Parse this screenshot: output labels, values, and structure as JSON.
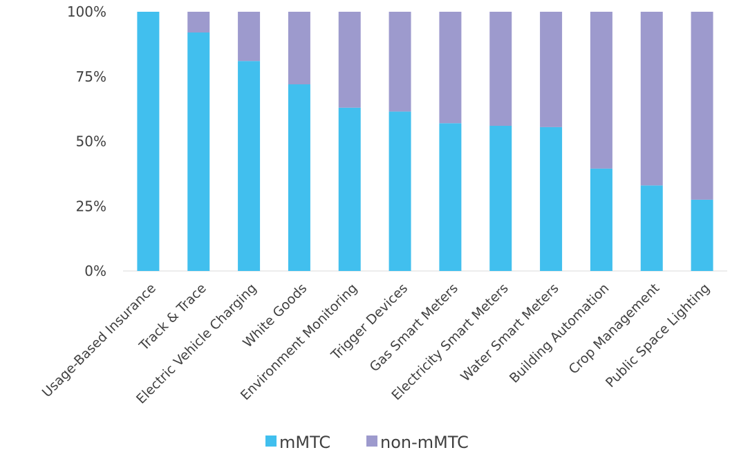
{
  "chart_data": {
    "type": "bar",
    "stacked": true,
    "percent": true,
    "categories": [
      "Usage-Based Insurance",
      "Track & Trace",
      "Electric Vehicle Charging",
      "White Goods",
      "Environment Monitoring",
      "Trigger Devices",
      "Gas Smart Meters",
      "Electricity Smart Meters",
      "Water Smart Meters",
      "Building Automation",
      "Crop Management",
      "Public Space Lighting"
    ],
    "series": [
      {
        "name": "mMTC",
        "color": "#41BFEE",
        "values": [
          100,
          92,
          81,
          72,
          63,
          61.5,
          57,
          56,
          55.5,
          39.5,
          33,
          27.5
        ]
      },
      {
        "name": "non-mMTC",
        "color": "#9D9ACD",
        "values": [
          0,
          8,
          19,
          28,
          37,
          38.5,
          43,
          44,
          44.5,
          60.5,
          67,
          72.5
        ]
      }
    ],
    "y_ticks": [
      "0%",
      "25%",
      "50%",
      "75%",
      "100%"
    ],
    "ylim": [
      0,
      100
    ],
    "grid": false,
    "legend_position": "bottom"
  }
}
